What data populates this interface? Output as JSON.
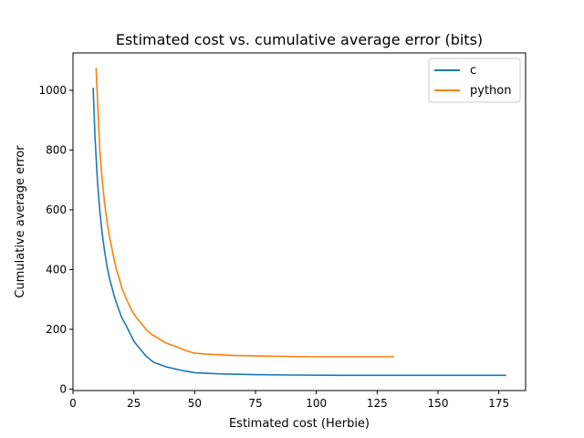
{
  "chart_data": {
    "type": "line",
    "title": "Estimated cost vs. cumulative average error (bits)",
    "xlabel": "Estimated cost (Herbie)",
    "ylabel": "Cumulative average error",
    "xlim": [
      0,
      186
    ],
    "ylim": [
      -5,
      1125
    ],
    "x_ticks": [
      0,
      25,
      50,
      75,
      100,
      125,
      150,
      175
    ],
    "y_ticks": [
      0,
      200,
      400,
      600,
      800,
      1000
    ],
    "grid": false,
    "legend_position": "top-right",
    "series": [
      {
        "name": "c",
        "color": "#1f77b4",
        "x": [
          8.3,
          9,
          10,
          11,
          12,
          13,
          14,
          15,
          16,
          17,
          18,
          20,
          22,
          25,
          28,
          30,
          33,
          38,
          45,
          50,
          60,
          75,
          90,
          110,
          130,
          150,
          178
        ],
        "y": [
          1008,
          850,
          700,
          600,
          520,
          460,
          410,
          370,
          340,
          310,
          285,
          240,
          210,
          160,
          130,
          110,
          90,
          75,
          62,
          55,
          51,
          48,
          47,
          46,
          46,
          46,
          46
        ]
      },
      {
        "name": "python",
        "color": "#ff7f0e",
        "x": [
          9.5,
          10,
          11,
          12,
          13,
          14,
          15,
          16,
          17,
          18,
          19,
          20,
          22,
          24,
          26,
          28,
          30,
          32,
          35,
          38,
          42,
          46,
          50,
          55,
          65,
          80,
          100,
          115,
          132
        ],
        "y": [
          1075,
          980,
          800,
          700,
          620,
          560,
          510,
          470,
          430,
          395,
          370,
          340,
          300,
          265,
          240,
          220,
          200,
          185,
          170,
          155,
          143,
          130,
          120,
          117,
          113,
          110,
          108,
          108,
          108
        ]
      }
    ]
  }
}
